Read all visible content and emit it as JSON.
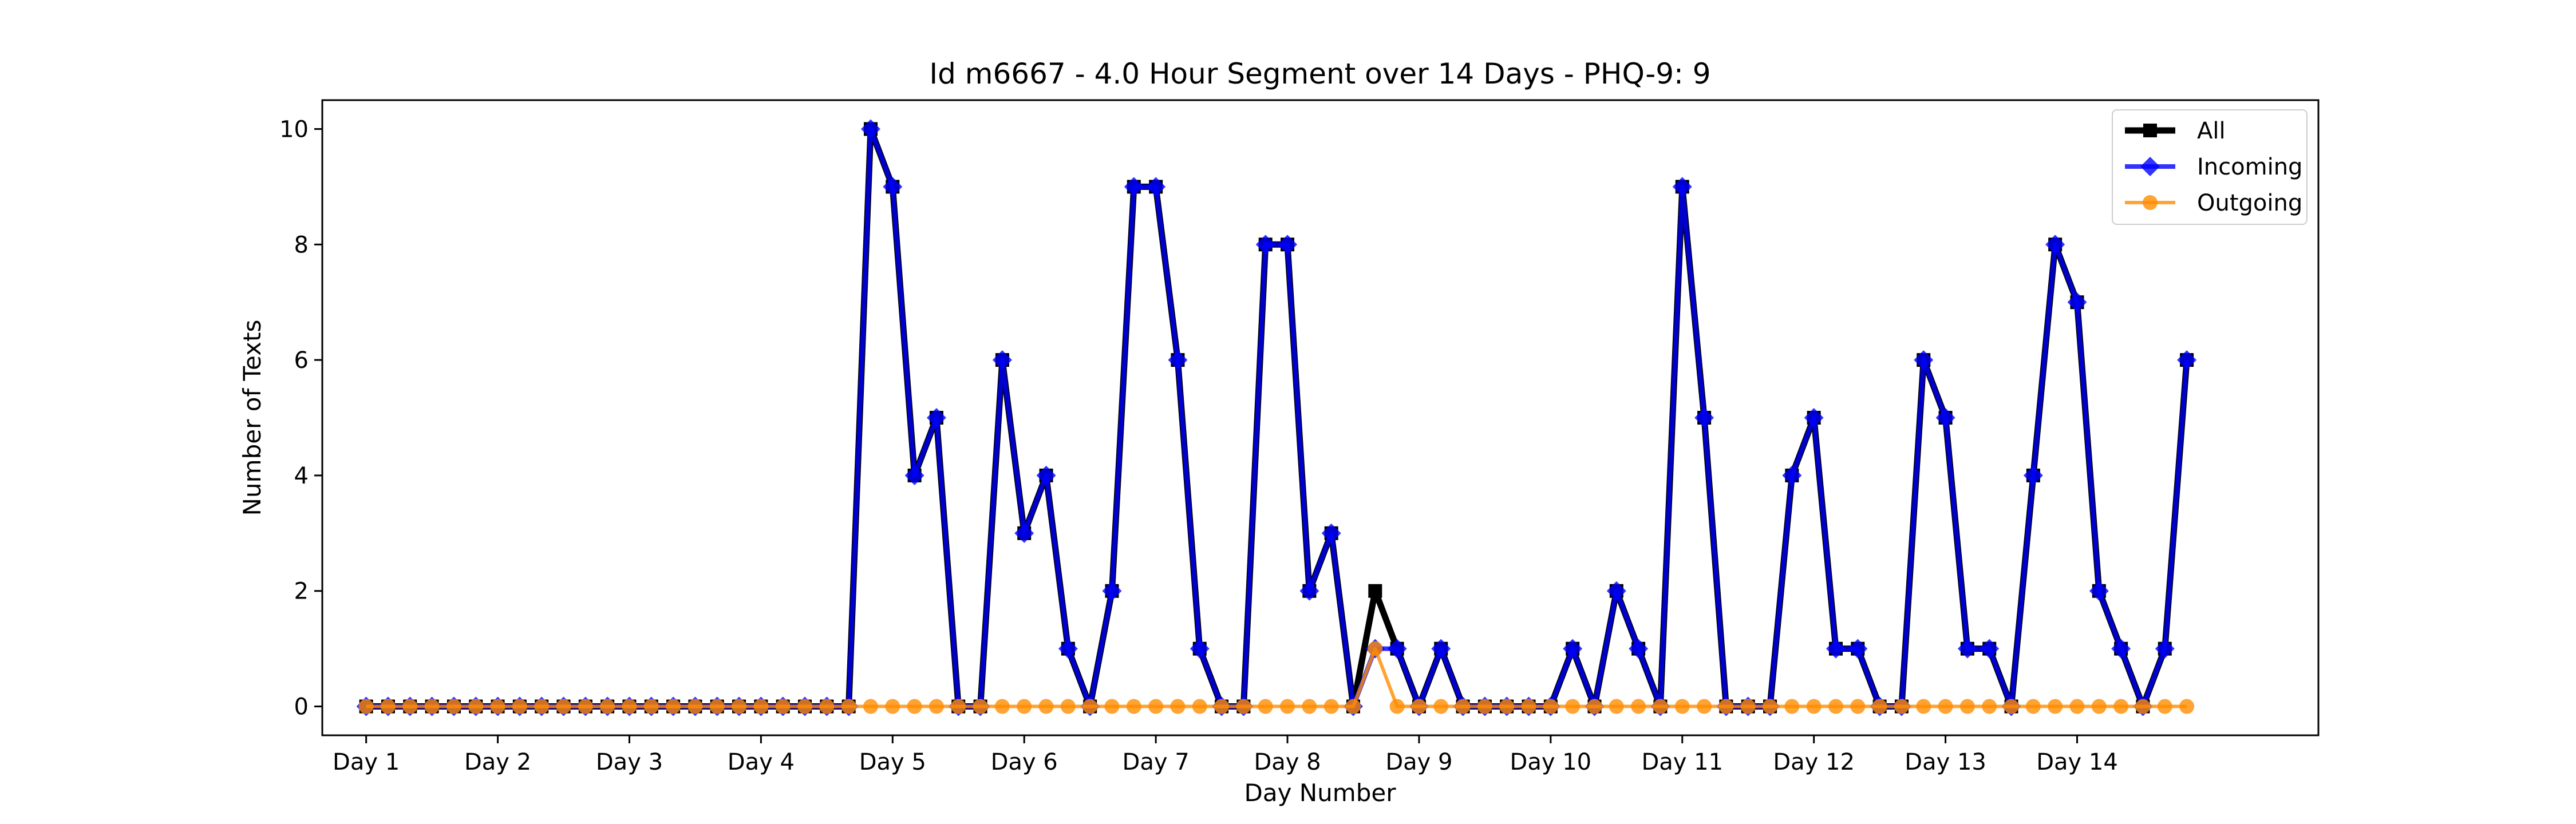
{
  "chart_data": {
    "type": "line",
    "title": "Id m6667 - 4.0 Hour Segment over 14 Days - PHQ-9: 9",
    "xlabel": "Day Number",
    "ylabel": "Number of Texts",
    "ylim": [
      -0.5,
      10.5
    ],
    "xlim": [
      -2.0,
      89.0
    ],
    "yticks": [
      0,
      2,
      4,
      6,
      8,
      10
    ],
    "xticks": [
      {
        "pos": 0,
        "label": "Day 1"
      },
      {
        "pos": 6,
        "label": "Day 2"
      },
      {
        "pos": 12,
        "label": "Day 3"
      },
      {
        "pos": 18,
        "label": "Day 4"
      },
      {
        "pos": 24,
        "label": "Day 5"
      },
      {
        "pos": 30,
        "label": "Day 6"
      },
      {
        "pos": 36,
        "label": "Day 7"
      },
      {
        "pos": 42,
        "label": "Day 8"
      },
      {
        "pos": 48,
        "label": "Day 9"
      },
      {
        "pos": 54,
        "label": "Day 10"
      },
      {
        "pos": 60,
        "label": "Day 11"
      },
      {
        "pos": 66,
        "label": "Day 12"
      },
      {
        "pos": 72,
        "label": "Day 13"
      },
      {
        "pos": 78,
        "label": "Day 14"
      }
    ],
    "grid": false,
    "legend_position": "top-right",
    "series": [
      {
        "name": "All",
        "color": "#000000",
        "marker": "square",
        "values": [
          0,
          0,
          0,
          0,
          0,
          0,
          0,
          0,
          0,
          0,
          0,
          0,
          0,
          0,
          0,
          0,
          0,
          0,
          0,
          0,
          0,
          0,
          0,
          10,
          9,
          4,
          5,
          0,
          0,
          6,
          3,
          4,
          1,
          0,
          2,
          9,
          9,
          6,
          1,
          0,
          0,
          8,
          8,
          2,
          3,
          0,
          2,
          1,
          0,
          1,
          0,
          0,
          0,
          0,
          0,
          1,
          0,
          2,
          1,
          0,
          9,
          5,
          0,
          0,
          0,
          4,
          5,
          1,
          1,
          0,
          0,
          6,
          5,
          1,
          1,
          0,
          4,
          8,
          7,
          2,
          1,
          0,
          1,
          6
        ]
      },
      {
        "name": "Incoming",
        "color": "#0000ff",
        "marker": "diamond",
        "values": [
          0,
          0,
          0,
          0,
          0,
          0,
          0,
          0,
          0,
          0,
          0,
          0,
          0,
          0,
          0,
          0,
          0,
          0,
          0,
          0,
          0,
          0,
          0,
          10,
          9,
          4,
          5,
          0,
          0,
          6,
          3,
          4,
          1,
          0,
          2,
          9,
          9,
          6,
          1,
          0,
          0,
          8,
          8,
          2,
          3,
          0,
          1,
          1,
          0,
          1,
          0,
          0,
          0,
          0,
          0,
          1,
          0,
          2,
          1,
          0,
          9,
          5,
          0,
          0,
          0,
          4,
          5,
          1,
          1,
          0,
          0,
          6,
          5,
          1,
          1,
          0,
          4,
          8,
          7,
          2,
          1,
          0,
          1,
          6
        ]
      },
      {
        "name": "Outgoing",
        "color": "#ff8c00",
        "marker": "circle",
        "values": [
          0,
          0,
          0,
          0,
          0,
          0,
          0,
          0,
          0,
          0,
          0,
          0,
          0,
          0,
          0,
          0,
          0,
          0,
          0,
          0,
          0,
          0,
          0,
          0,
          0,
          0,
          0,
          0,
          0,
          0,
          0,
          0,
          0,
          0,
          0,
          0,
          0,
          0,
          0,
          0,
          0,
          0,
          0,
          0,
          0,
          0,
          1,
          0,
          0,
          0,
          0,
          0,
          0,
          0,
          0,
          0,
          0,
          0,
          0,
          0,
          0,
          0,
          0,
          0,
          0,
          0,
          0,
          0,
          0,
          0,
          0,
          0,
          0,
          0,
          0,
          0,
          0,
          0,
          0,
          0,
          0,
          0,
          0,
          0
        ]
      }
    ]
  }
}
